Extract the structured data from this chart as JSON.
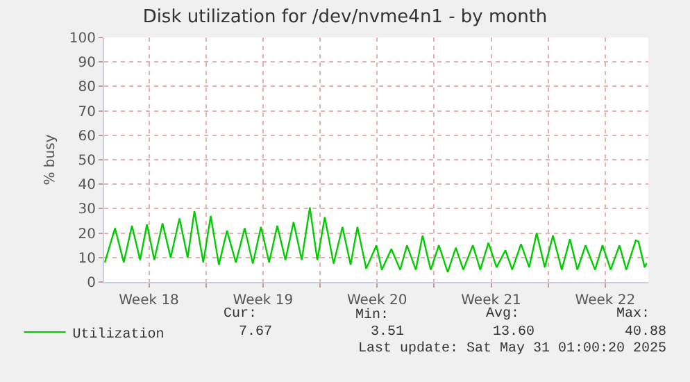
{
  "chart_data": {
    "type": "line",
    "title": "Disk utilization for /dev/nvme4n1 - by month",
    "ylabel": "% busy",
    "x": [
      "2025-04-27T19:00",
      "2025-04-28T10:00",
      "2025-04-28T23:00",
      "2025-04-29T11:00",
      "2025-04-29T23:00",
      "2025-04-30T09:00",
      "2025-04-30T20:00",
      "2025-05-01T08:00",
      "2025-05-01T20:00",
      "2025-05-02T09:00",
      "2025-05-02T21:00",
      "2025-05-03T07:00",
      "2025-05-03T20:00",
      "2025-05-04T07:00",
      "2025-05-04T19:00",
      "2025-05-05T07:00",
      "2025-05-05T20:00",
      "2025-05-06T09:00",
      "2025-05-06T21:00",
      "2025-05-07T09:00",
      "2025-05-07T21:00",
      "2025-05-08T09:00",
      "2025-05-08T21:00",
      "2025-05-09T09:00",
      "2025-05-09T21:00",
      "2025-05-10T09:00",
      "2025-05-10T20:00",
      "2025-05-11T07:00",
      "2025-05-11T20:00",
      "2025-05-12T09:00",
      "2025-05-12T21:00",
      "2025-05-13T07:00",
      "2025-05-13T20:00",
      "2025-05-14T11:00",
      "2025-05-14T19:00",
      "2025-05-15T09:00",
      "2025-05-15T22:00",
      "2025-05-16T08:00",
      "2025-05-16T21:00",
      "2025-05-17T07:00",
      "2025-05-17T19:00",
      "2025-05-18T07:00",
      "2025-05-18T20:00",
      "2025-05-19T08:00",
      "2025-05-19T19:00",
      "2025-05-20T09:00",
      "2025-05-20T20:00",
      "2025-05-21T08:00",
      "2025-05-21T20:00",
      "2025-05-22T09:00",
      "2025-05-22T19:00",
      "2025-05-23T08:00",
      "2025-05-23T20:00",
      "2025-05-24T07:00",
      "2025-05-24T19:00",
      "2025-05-25T07:00",
      "2025-05-25T20:00",
      "2025-05-26T08:00",
      "2025-05-26T19:00",
      "2025-05-27T07:00",
      "2025-05-27T21:00",
      "2025-05-28T08:00",
      "2025-05-28T20:00",
      "2025-05-29T09:00",
      "2025-05-29T19:00",
      "2025-05-30T09:00",
      "2025-05-30T13:00",
      "2025-05-30T22:00",
      "2025-05-31T01:00"
    ],
    "series": [
      {
        "name": "Utilization",
        "color": "#00cc00",
        "values": [
          8,
          22,
          8,
          23,
          9,
          23.5,
          9,
          24,
          10,
          26,
          10,
          29,
          8,
          27,
          7,
          21,
          8,
          22,
          7.5,
          22.5,
          8,
          23,
          9,
          24.5,
          9,
          30.5,
          9,
          26.5,
          7.5,
          22.5,
          7,
          22.5,
          5.5,
          15,
          5,
          13.5,
          5,
          15,
          5,
          19,
          5,
          15,
          4,
          14,
          5,
          15,
          5,
          16,
          6,
          13,
          5,
          15.5,
          6,
          20,
          6,
          19,
          5,
          17.5,
          5,
          15,
          5,
          15,
          5,
          15,
          5,
          17,
          16.5,
          6,
          7.7
        ]
      }
    ],
    "xlim": [
      "2025-04-27T18:00",
      "2025-05-31T03:30"
    ],
    "xticks": [
      {
        "value": "2025-04-30T12:00",
        "label": "Week 18"
      },
      {
        "value": "2025-05-04",
        "label": null
      },
      {
        "value": "2025-05-07T12:00",
        "label": "Week 19"
      },
      {
        "value": "2025-05-11",
        "label": null
      },
      {
        "value": "2025-05-14T12:00",
        "label": "Week 20"
      },
      {
        "value": "2025-05-18",
        "label": null
      },
      {
        "value": "2025-05-21T12:00",
        "label": "Week 21"
      },
      {
        "value": "2025-05-25",
        "label": null
      },
      {
        "value": "2025-05-28T12:00",
        "label": "Week 22"
      }
    ],
    "ylim": [
      0,
      100
    ],
    "yticks": [
      0,
      10,
      20,
      30,
      40,
      50,
      60,
      70,
      80,
      90,
      100
    ],
    "grid": true,
    "legend": "bottom",
    "marker": "none",
    "line_style": "solid",
    "annotations": [
      "Cur:",
      "Min:",
      "Avg:",
      "Max:",
      "7.67",
      "3.51",
      "13.60",
      "40.88",
      "Last update: Sat May 31 01:00:20 2025"
    ]
  }
}
